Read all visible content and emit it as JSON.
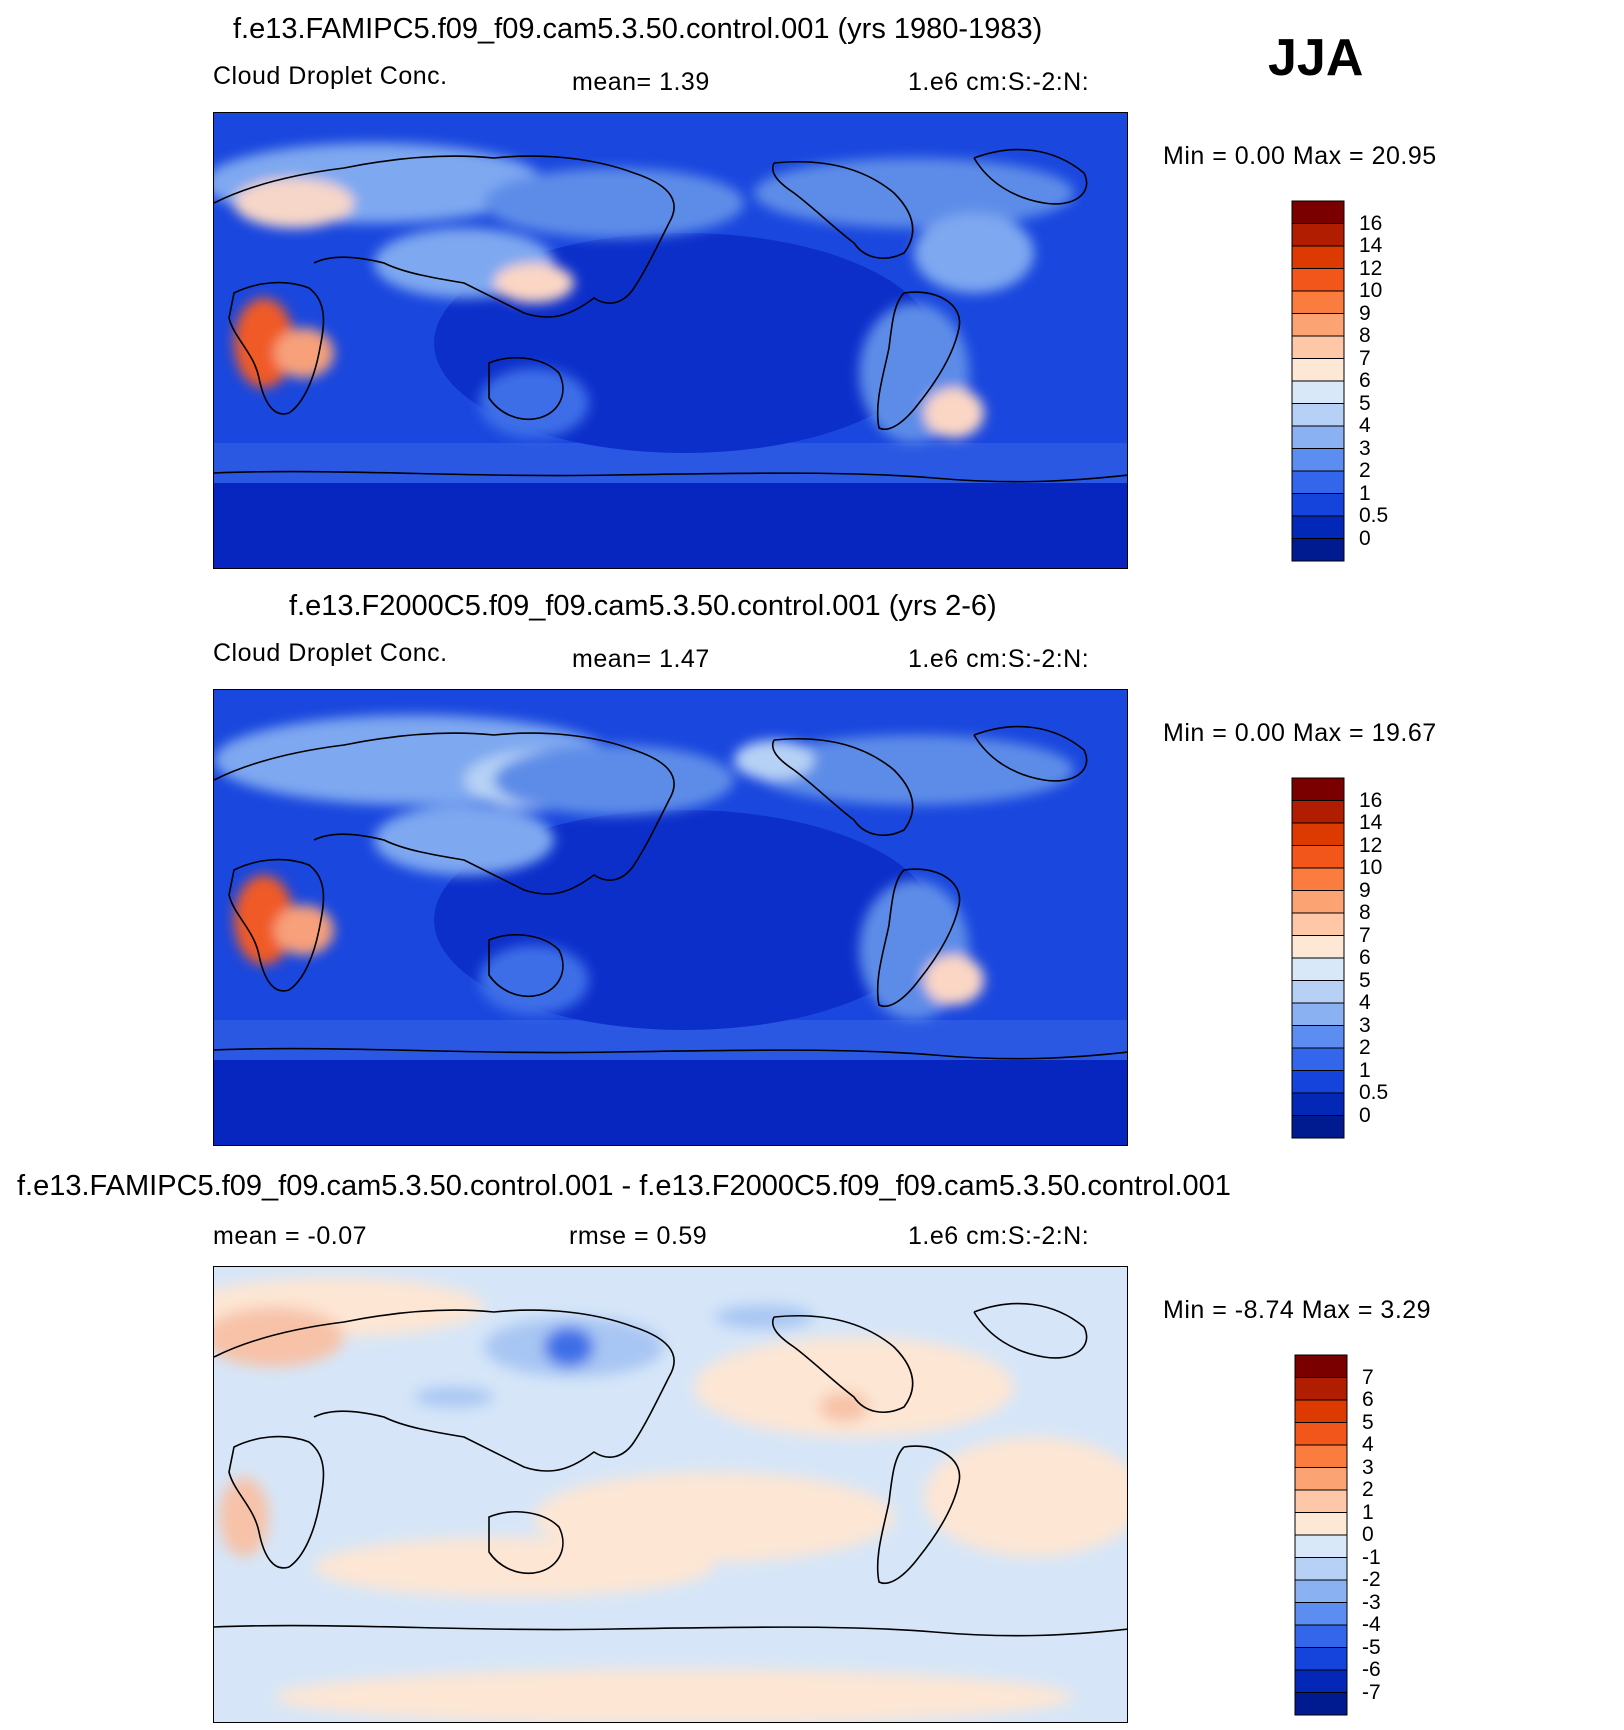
{
  "season": "JJA",
  "panels": [
    {
      "title": "f.e13.FAMIPC5.f09_f09.cam5.3.50.control.001 (yrs 1980-1983)",
      "variable": "Cloud Droplet Conc.",
      "stat_text": "mean=    1.39",
      "units": "1.e6 cm:S:-2:N:",
      "minmax": "Min =     0.00 Max =   20.95",
      "colorbar": {
        "labels": [
          "16",
          "14",
          "12",
          "10",
          "9",
          "8",
          "7",
          "6",
          "5",
          "4",
          "3",
          "2",
          "1",
          "0.5",
          "0"
        ],
        "colors": [
          "#7a0000",
          "#b11d00",
          "#dc3a00",
          "#f2561a",
          "#fa7d3f",
          "#fca373",
          "#fec8a8",
          "#fde8d6",
          "#d8e8f8",
          "#b6d1f5",
          "#8ab2f2",
          "#5b8ef0",
          "#3366ea",
          "#1544dc",
          "#0328b8",
          "#001a90"
        ]
      },
      "stats": {
        "mean": 1.39,
        "min": 0.0,
        "max": 20.95
      }
    },
    {
      "title": "f.e13.F2000C5.f09_f09.cam5.3.50.control.001 (yrs 2-6)",
      "variable": "Cloud Droplet Conc.",
      "stat_text": "mean=    1.47",
      "units": "1.e6 cm:S:-2:N:",
      "minmax": "Min =     0.00 Max =   19.67",
      "colorbar": {
        "labels": [
          "16",
          "14",
          "12",
          "10",
          "9",
          "8",
          "7",
          "6",
          "5",
          "4",
          "3",
          "2",
          "1",
          "0.5",
          "0"
        ],
        "colors": [
          "#7a0000",
          "#b11d00",
          "#dc3a00",
          "#f2561a",
          "#fa7d3f",
          "#fca373",
          "#fec8a8",
          "#fde8d6",
          "#d8e8f8",
          "#b6d1f5",
          "#8ab2f2",
          "#5b8ef0",
          "#3366ea",
          "#1544dc",
          "#0328b8",
          "#001a90"
        ]
      },
      "stats": {
        "mean": 1.47,
        "min": 0.0,
        "max": 19.67
      }
    },
    {
      "title": "f.e13.FAMIPC5.f09_f09.cam5.3.50.control.001 - f.e13.F2000C5.f09_f09.cam5.3.50.control.001",
      "stat_text": "mean =    -0.07",
      "stat2_text": "rmse =     0.59",
      "units": "1.e6 cm:S:-2:N:",
      "minmax": "Min =   -8.74 Max =    3.29",
      "colorbar": {
        "labels": [
          "7",
          "6",
          "5",
          "4",
          "3",
          "2",
          "1",
          "0",
          "-1",
          "-2",
          "-3",
          "-4",
          "-5",
          "-6",
          "-7"
        ],
        "colors": [
          "#7a0000",
          "#b11d00",
          "#dc3a00",
          "#f2561a",
          "#fa7d3f",
          "#fca373",
          "#fec8a8",
          "#fde8d6",
          "#d8e8f8",
          "#b6d1f5",
          "#8ab2f2",
          "#5b8ef0",
          "#3366ea",
          "#1544dc",
          "#0328b8",
          "#001a90"
        ]
      },
      "stats": {
        "mean": -0.07,
        "rmse": 0.59,
        "min": -8.74,
        "max": 3.29
      }
    }
  ],
  "colors": {
    "ocean_dark": "#0726c0",
    "ocean_mid": "#1a47de",
    "land_mid": "#3c6ee8",
    "land_light": "#7ea8f0",
    "hot": "#f05a28",
    "diff_pos": "#fde6d4",
    "diff_neg": "#d6e6f8"
  }
}
